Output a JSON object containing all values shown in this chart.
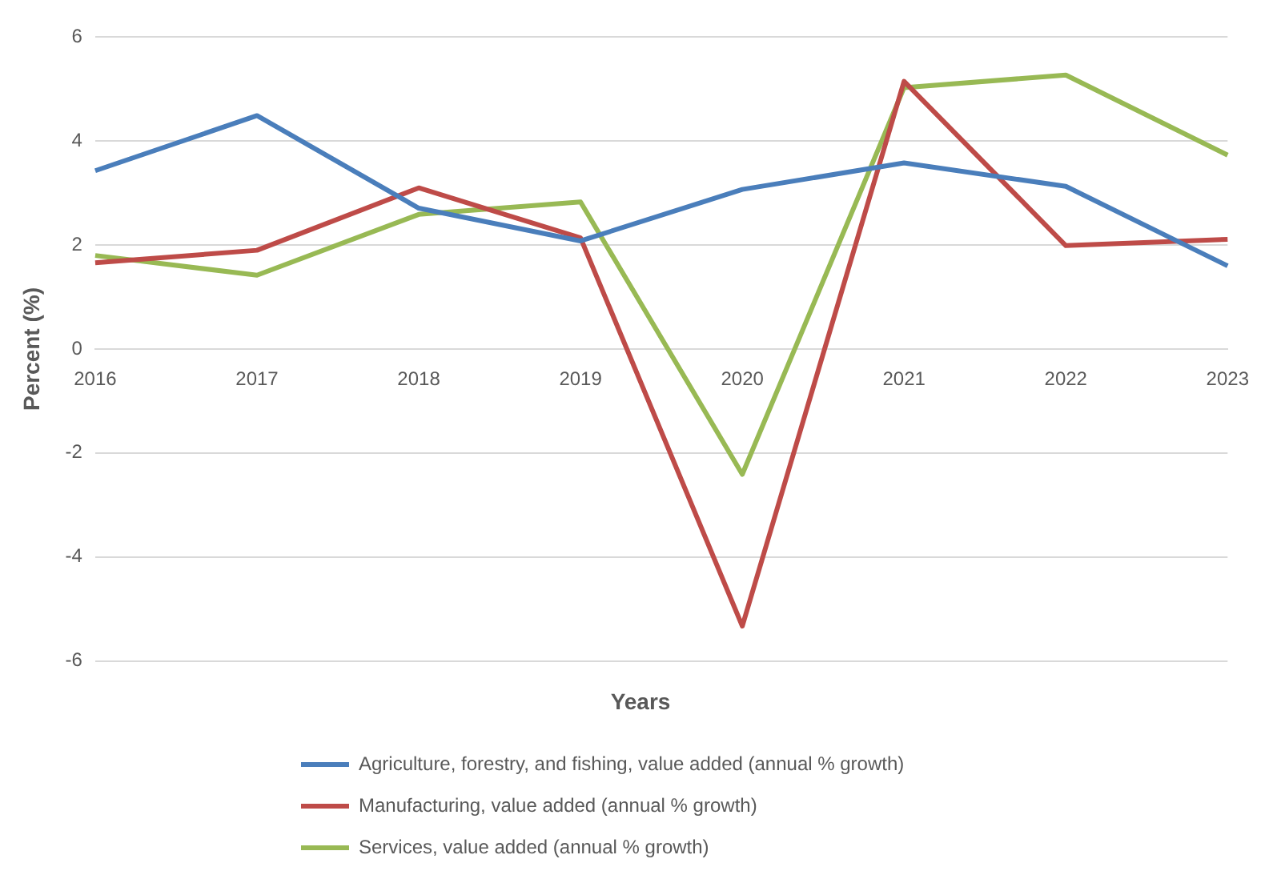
{
  "chart_data": {
    "type": "line",
    "xlabel": "Years",
    "ylabel": "Percent (%)",
    "categories": [
      "2016",
      "2017",
      "2018",
      "2019",
      "2020",
      "2021",
      "2022",
      "2023"
    ],
    "series": [
      {
        "name": "Agriculture, forestry, and fishing, value added (annual % growth)",
        "color": "#4a7ebb",
        "values": [
          3.43,
          4.49,
          2.71,
          2.08,
          3.07,
          3.58,
          3.13,
          1.6
        ]
      },
      {
        "name": "Manufacturing, value added (annual % growth)",
        "color": "#be4b48",
        "values": [
          1.66,
          1.9,
          3.1,
          2.14,
          -5.33,
          5.15,
          1.99,
          2.11
        ]
      },
      {
        "name": "Services, value added (annual % growth)",
        "color": "#98b954",
        "values": [
          1.8,
          1.42,
          2.59,
          2.83,
          -2.41,
          5.03,
          5.27,
          3.73
        ]
      }
    ],
    "ylim": [
      -6,
      6
    ],
    "yticks": [
      -6,
      -4,
      -2,
      0,
      2,
      4,
      6
    ],
    "grid": "y",
    "legend": "bottom",
    "marker": "none",
    "line_style": "solid"
  }
}
